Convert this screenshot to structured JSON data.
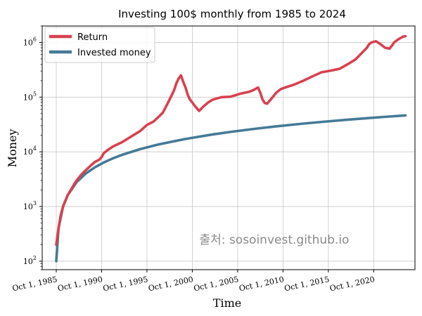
{
  "chart_data": {
    "type": "line",
    "title": "Investing 100$ monthly from 1985 to 2024",
    "xlabel": "Time",
    "ylabel": "Money",
    "y_scale": "log",
    "ylim": [
      70,
      2000000
    ],
    "xlim": [
      1984.2,
      2025.3
    ],
    "x_ticks": [
      {
        "label": "Oct 1, 1985",
        "value": 1985.75
      },
      {
        "label": "Oct 1, 1990",
        "value": 1990.75
      },
      {
        "label": "Oct 1, 1995",
        "value": 1995.75
      },
      {
        "label": "Oct 1, 2000",
        "value": 2000.75
      },
      {
        "label": "Oct 1, 2005",
        "value": 2005.75
      },
      {
        "label": "Oct 1, 2010",
        "value": 2010.75
      },
      {
        "label": "Oct 1, 2015",
        "value": 2015.75
      },
      {
        "label": "Oct 1, 2020",
        "value": 2020.75
      }
    ],
    "y_ticks": [
      {
        "base": "10",
        "exp": "2",
        "value": 100
      },
      {
        "base": "10",
        "exp": "3",
        "value": 1000
      },
      {
        "base": "10",
        "exp": "4",
        "value": 10000
      },
      {
        "base": "10",
        "exp": "5",
        "value": 100000
      },
      {
        "base": "10",
        "exp": "6",
        "value": 1000000
      }
    ],
    "grid": true,
    "legend_position": "top-left",
    "series": [
      {
        "name": "Return",
        "color": "#d9404f",
        "x": [
          1985.75,
          1986.0,
          1986.25,
          1986.5,
          1987.0,
          1987.5,
          1987.75,
          1988.0,
          1988.5,
          1989.0,
          1989.5,
          1990.0,
          1990.5,
          1990.75,
          1991.0,
          1991.5,
          1992.0,
          1993.0,
          1994.0,
          1995.0,
          1995.75,
          1996.5,
          1997.0,
          1997.5,
          1998.0,
          1998.5,
          1998.75,
          1999.0,
          1999.25,
          1999.5,
          1999.75,
          2000.0,
          2000.25,
          2000.5,
          2000.75,
          2001.0,
          2001.5,
          2002.0,
          2002.5,
          2003.0,
          2003.5,
          2004.0,
          2005.0,
          2006.0,
          2007.0,
          2007.5,
          2008.0,
          2008.25,
          2008.5,
          2008.75,
          2009.0,
          2009.5,
          2010.0,
          2010.5,
          2011.0,
          2012.0,
          2013.0,
          2014.0,
          2015.0,
          2016.0,
          2017.0,
          2018.0,
          2018.75,
          2019.0,
          2020.0,
          2020.25,
          2020.5,
          2021.0,
          2021.5,
          2022.0,
          2022.5,
          2022.75,
          2023.0,
          2023.5,
          2024.0,
          2024.25
        ],
        "values": [
          200,
          400,
          700,
          1000,
          1600,
          2200,
          2600,
          3000,
          3800,
          4600,
          5500,
          6500,
          7200,
          8000,
          9500,
          11000,
          12500,
          15000,
          19000,
          24000,
          31000,
          36000,
          43000,
          52000,
          75000,
          110000,
          135000,
          180000,
          220000,
          250000,
          190000,
          150000,
          110000,
          90000,
          80000,
          70000,
          56000,
          68000,
          80000,
          90000,
          95000,
          100000,
          102000,
          115000,
          125000,
          135000,
          150000,
          120000,
          90000,
          78000,
          76000,
          95000,
          120000,
          140000,
          150000,
          170000,
          200000,
          240000,
          285000,
          305000,
          330000,
          410000,
          490000,
          540000,
          800000,
          930000,
          1000000,
          1050000,
          930000,
          800000,
          770000,
          870000,
          1000000,
          1150000,
          1280000,
          1300000
        ]
      },
      {
        "name": "Invested money",
        "color": "#457a96",
        "x": [
          1985.75,
          1986.0,
          1986.5,
          1987.0,
          1988.0,
          1989.0,
          1990.0,
          1991.0,
          1992.0,
          1993.0,
          1995.0,
          1997.0,
          2000.0,
          2003.0,
          2005.0,
          2008.0,
          2010.0,
          2013.0,
          2015.0,
          2018.0,
          2020.0,
          2022.0,
          2024.0,
          2024.25
        ],
        "values": [
          100,
          400,
          1000,
          1600,
          2800,
          4000,
          5200,
          6400,
          7600,
          8800,
          11200,
          13600,
          17200,
          20800,
          23200,
          26800,
          29200,
          32800,
          35200,
          38800,
          41200,
          43600,
          46000,
          46400
        ]
      }
    ],
    "watermark": "출처: sosoinvest.github.io"
  }
}
